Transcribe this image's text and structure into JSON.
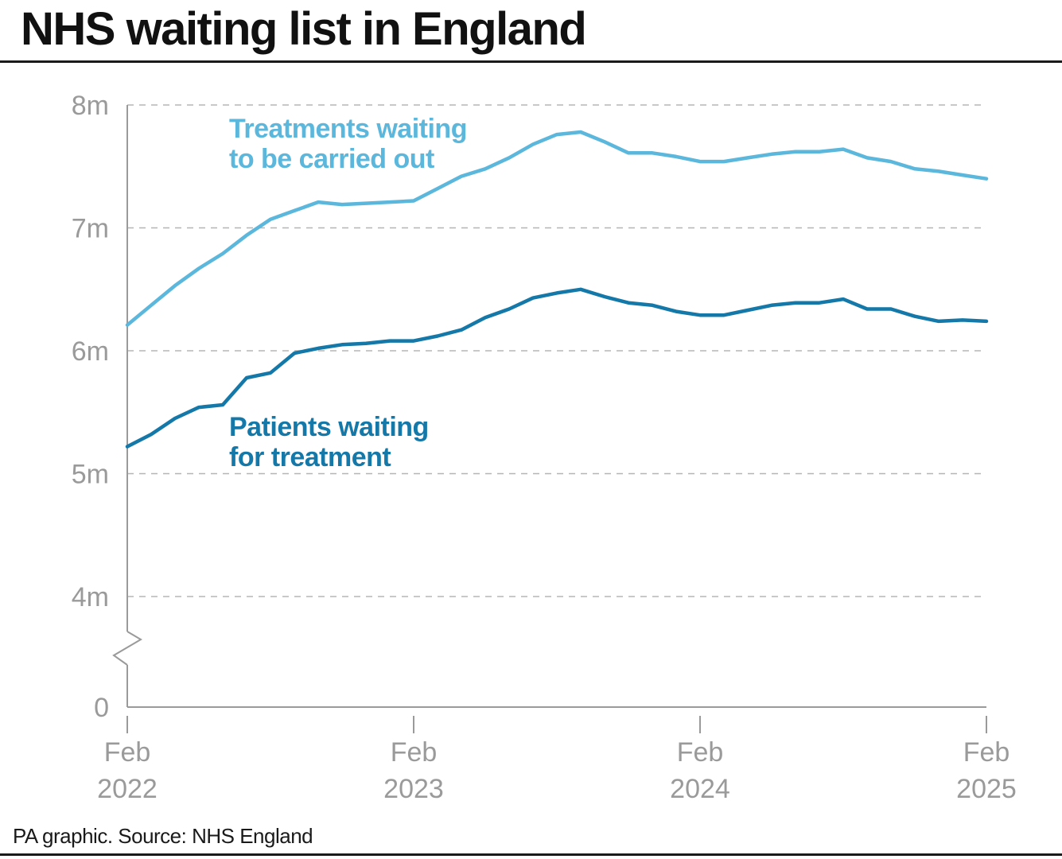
{
  "title": "NHS waiting list in England",
  "source": "PA graphic. Source: NHS England",
  "colors": {
    "treatments": "#5bb7dc",
    "patients": "#1478a8",
    "axis": "#9a9a9a",
    "grid": "#b5b5b5"
  },
  "chart_data": {
    "type": "line",
    "title": "NHS waiting list in England",
    "xlabel": "",
    "ylabel": "",
    "ylim": [
      0,
      8
    ],
    "axis_break": "between 0 and 4m",
    "y_ticks": [
      {
        "value": 8,
        "label": "8m"
      },
      {
        "value": 7,
        "label": "7m"
      },
      {
        "value": 6,
        "label": "6m"
      },
      {
        "value": 5,
        "label": "5m"
      },
      {
        "value": 4,
        "label": "4m"
      },
      {
        "value": 0,
        "label": "0"
      }
    ],
    "x_ticks": [
      {
        "index": 0,
        "month": "Feb",
        "year": "2022"
      },
      {
        "index": 12,
        "month": "Feb",
        "year": "2023"
      },
      {
        "index": 24,
        "month": "Feb",
        "year": "2024"
      },
      {
        "index": 36,
        "month": "Feb",
        "year": "2025"
      }
    ],
    "x_start": "Feb 2022",
    "x_end": "Feb 2025",
    "grid": true,
    "series": [
      {
        "name": "Treatments waiting to be carried out",
        "label_lines": [
          "Treatments waiting",
          "to be carried out"
        ],
        "values": [
          6.21,
          6.37,
          6.53,
          6.67,
          6.79,
          6.94,
          7.07,
          7.14,
          7.21,
          7.19,
          7.2,
          7.21,
          7.22,
          7.32,
          7.42,
          7.48,
          7.57,
          7.68,
          7.76,
          7.78,
          7.7,
          7.61,
          7.61,
          7.58,
          7.54,
          7.54,
          7.57,
          7.6,
          7.62,
          7.62,
          7.64,
          7.57,
          7.54,
          7.48,
          7.46,
          7.43,
          7.4
        ]
      },
      {
        "name": "Patients waiting for treatment",
        "label_lines": [
          "Patients waiting",
          "for treatment"
        ],
        "values": [
          5.22,
          5.32,
          5.45,
          5.54,
          5.56,
          5.78,
          5.82,
          5.98,
          6.02,
          6.05,
          6.06,
          6.08,
          6.08,
          6.12,
          6.17,
          6.27,
          6.34,
          6.43,
          6.47,
          6.5,
          6.44,
          6.39,
          6.37,
          6.32,
          6.29,
          6.29,
          6.33,
          6.37,
          6.39,
          6.39,
          6.42,
          6.34,
          6.34,
          6.28,
          6.24,
          6.25,
          6.24
        ]
      }
    ]
  }
}
